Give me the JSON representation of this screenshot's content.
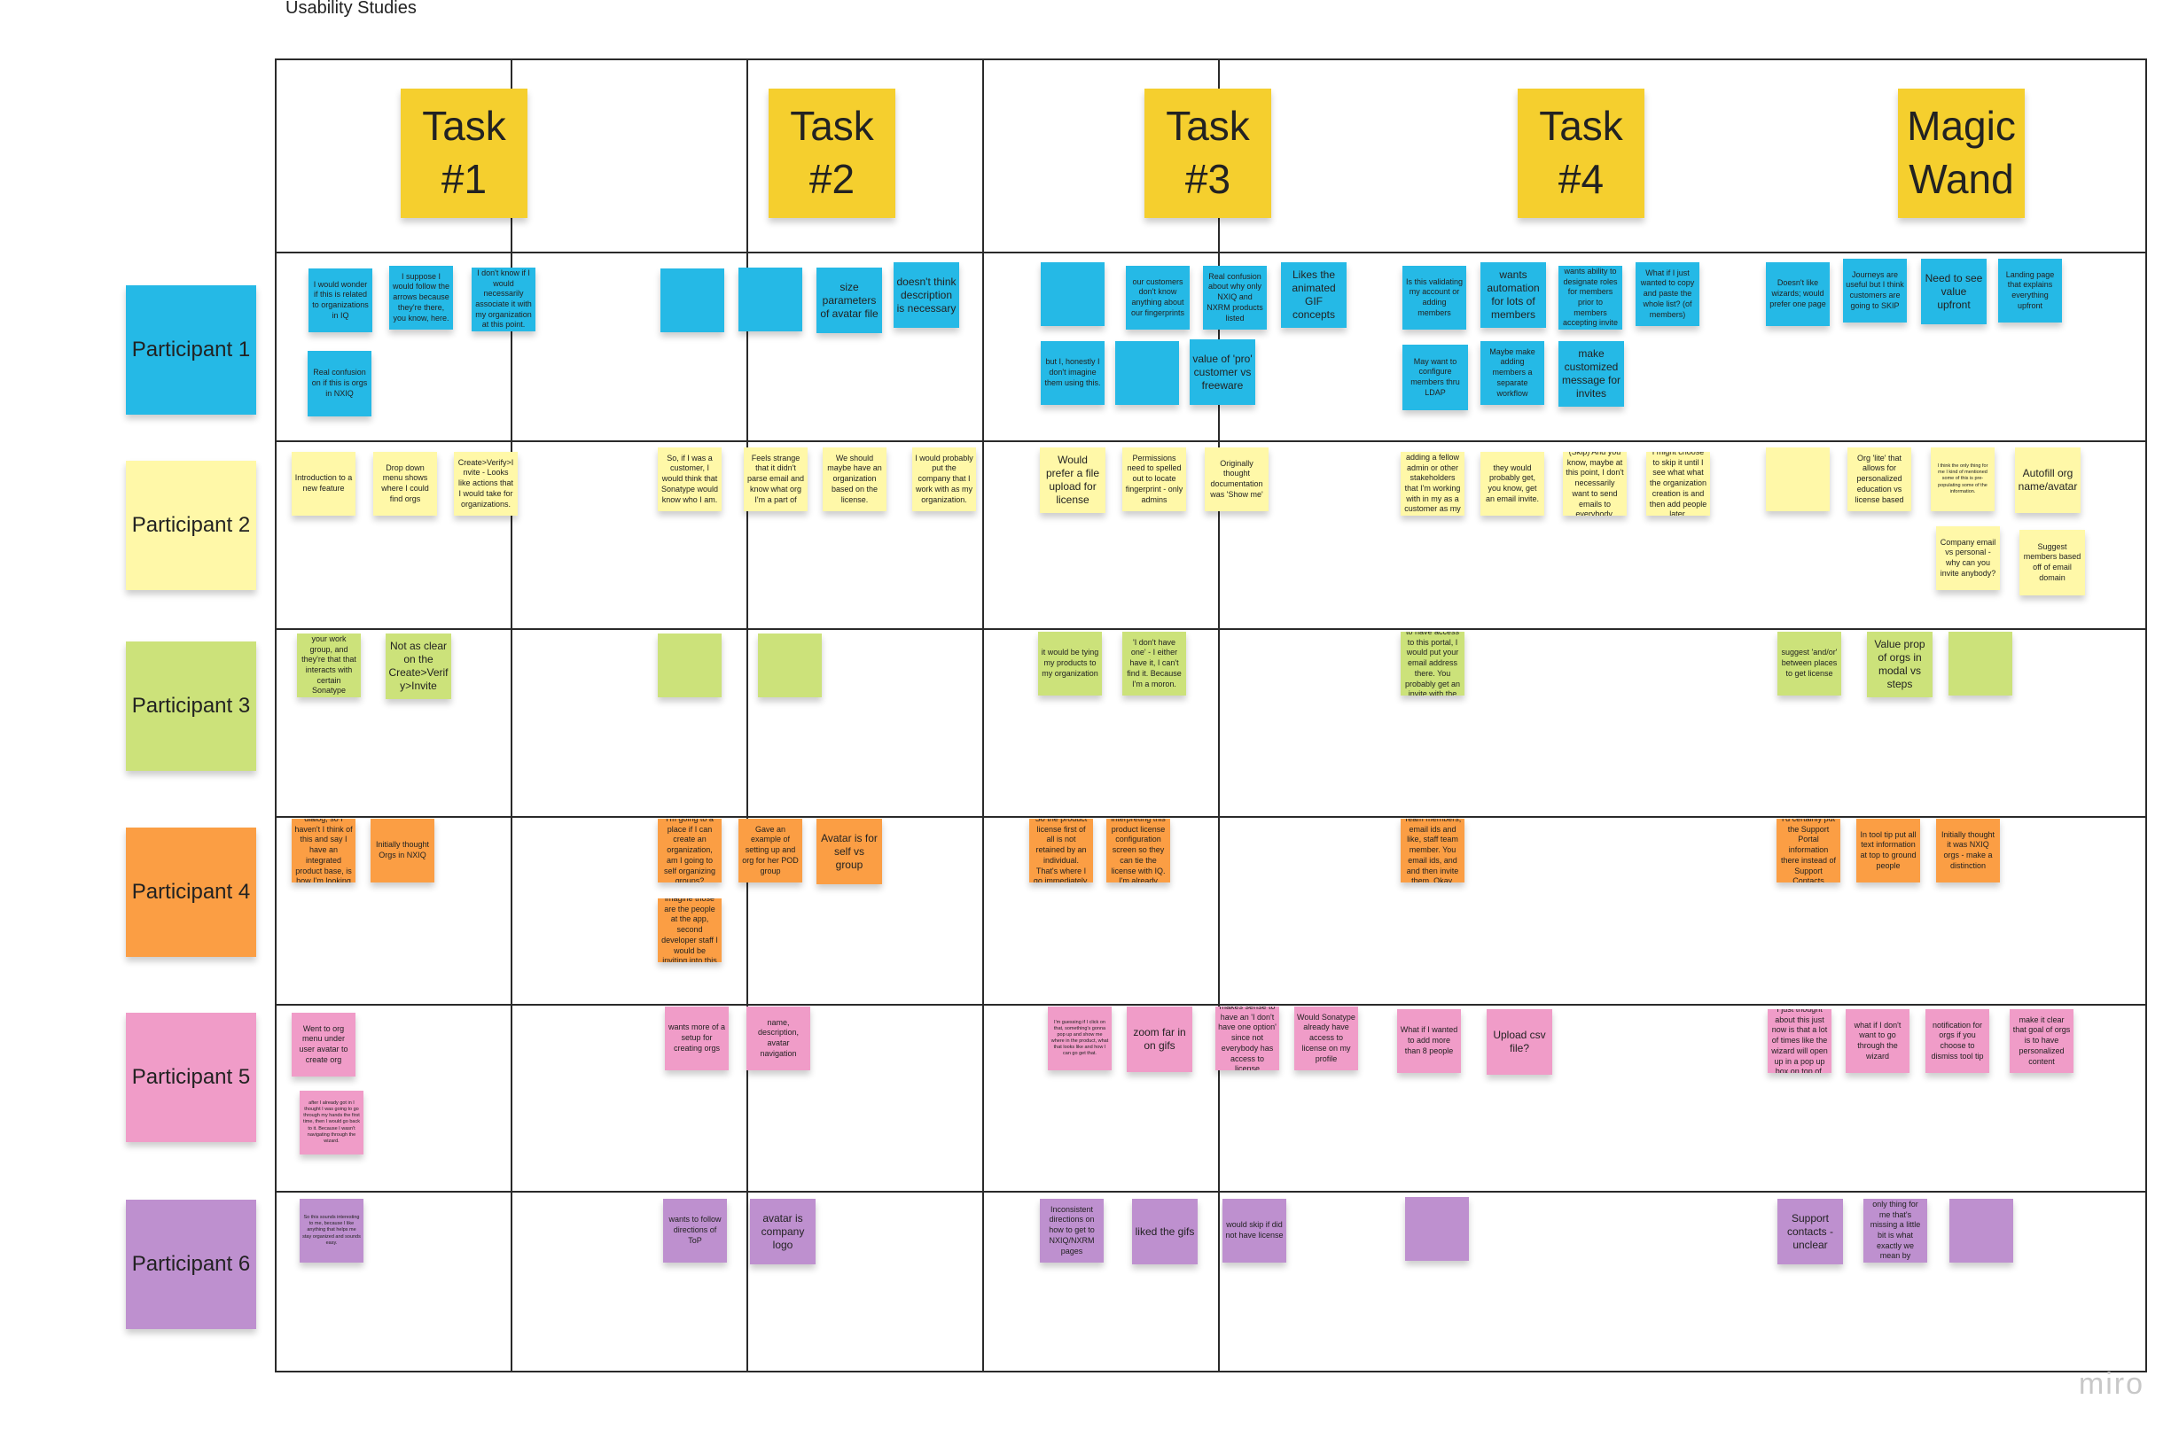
{
  "board": {
    "title": "Usability Studies",
    "watermark": "miro"
  },
  "colors": {
    "task": "#f5cf2e",
    "p1": "#25b9e6",
    "p2": "#fff8a8",
    "p3": "#cce27a",
    "p4": "#fb9e44",
    "p5": "#f09cc8",
    "p6": "#be90cf"
  },
  "columns": [
    {
      "label": "Task #1"
    },
    {
      "label": "Task #2"
    },
    {
      "label": "Task #3"
    },
    {
      "label": "Task #4"
    },
    {
      "label": "Magic Wand"
    }
  ],
  "rows": [
    {
      "label": "Participant 1",
      "color": "#25b9e6"
    },
    {
      "label": "Participant 2",
      "color": "#fff8a8"
    },
    {
      "label": "Participant 3",
      "color": "#cce27a"
    },
    {
      "label": "Participant 4",
      "color": "#fb9e44"
    },
    {
      "label": "Participant 5",
      "color": "#f09cc8"
    },
    {
      "label": "Participant 6",
      "color": "#be90cf"
    }
  ],
  "notes": {
    "p1": {
      "t1": [
        "I would wonder if this is related to organizations in IQ",
        "I suppose I would follow the arrows because they're there, you know, here.",
        "I don't know if I would necessarily associate it with my organization at this point.",
        "Real confusion on if this is orgs in NXIQ"
      ],
      "t2": [
        "",
        "",
        "size parameters of avatar file",
        "doesn't think description is necessary"
      ],
      "t3": [
        "",
        "our customers don't know anything about our fingerprints",
        "Real confusion about why only NXIQ and NXRM products listed",
        "Likes the animated GIF concepts",
        "but I, honestly I don't imagine them using this.",
        "",
        "value of 'pro' customer vs freeware"
      ],
      "t4": [
        "Is this validating my account or adding members",
        "wants automation for lots of members",
        "wants ability to designate roles for members prior to members accepting invite",
        "What if I just wanted to copy and paste the whole list? (of members)",
        "May want to configure members thru LDAP",
        "Maybe make adding members a separate workflow",
        "make customized message for invites"
      ],
      "mw": [
        "Doesn't like wizards; would prefer one page",
        "Journeys are useful but I think customers are going to SKIP",
        "Need to see value upfront",
        "Landing page that explains everything upfront"
      ]
    },
    "p2": {
      "t1": [
        "Introduction to a new feature",
        "Drop down menu shows where I could find orgs",
        "Create>Verify>Invite - Looks like actions that I would take for organizations."
      ],
      "t2": [
        "So, if I was a customer, I would think that Sonatype would know who I am.",
        "Feels strange that it didn't parse email and know what org I'm a part of",
        "We should maybe have an organization based on the license.",
        "I would probably put the company that I work with as my organization."
      ],
      "t3": [
        "Would prefer a file upload for license",
        "Permissions need to spelled out to locate fingerprint - only admins",
        "Originally thought documentation was 'Show me'"
      ],
      "t4": [
        "I would be adding a fellow admin or other stakeholders that I'm working with in my as a customer as my organization.",
        "they would probably get, you know, get an email invite.",
        "(Skip) And you know, maybe at this point, I don't necessarily want to send emails to everybody.",
        "I might choose to skip it until I see what what the organization creation is and then add people later."
      ],
      "mw": [
        "",
        "Org 'lite' that allows for personalized education vs license based",
        "I think the only thing for me I kind of mentioned some of this is pre-populating some of the information.",
        "Autofill org name/avatar",
        "Company email vs personal - why can you invite anybody?",
        "Suggest members based off of email domain"
      ]
    },
    "p3": {
      "t1": [
        "Everybody in your work group, and they're that that interacts with certain Sonatype products",
        "Not as clear on the Create>Verify>Invite"
      ],
      "t2": [
        "",
        ""
      ],
      "t3": [
        "it would be tying my products to my organization",
        "'I don't have one' - I either have it, I can't find it. Because I'm a moron."
      ],
      "t4": [
        "If I wanted you to have access to this portal, I would put your email address there. You probably get an invite with the link to join."
      ],
      "mw": [
        "suggest 'and/or' between places to get license",
        "Value prop of orgs in modal vs steps",
        ""
      ]
    },
    "p4": {
      "t1": [
        "I'm seeing this dialog, so I haven't I think of this and say I have an integrated product base, is how I'm looking at this.",
        "Initially thought Orgs in NXIQ"
      ],
      "t2": [
        "I'm going to a place if I can create an organization, am I going to self organizing groups?",
        "Gave an example of setting up and org for her POD group",
        "Avatar is for self vs group",
        "So I would imagine those are the people at the app, second developer staff I would be inviting into this organization"
      ],
      "t3": [
        "So the product license first of all is not retained by an individual. That's where I go immediately.",
        "That's how I'm interpreting this product license configuration screen so they can tie the license with IQ. I'm already excited."
      ],
      "t4": [
        "Team members, email ids and like, staff team member. You email ids, and and then invite them. Okay."
      ],
      "mw": [
        "I'd certainly put the Support Portal information there instead of Support Contacts",
        "In tool tip put all text information at top to ground people",
        "Initially thought it was NXIQ orgs - make a distinction"
      ]
    },
    "p5": {
      "t1": [
        "Went to org menu under user avatar to create org",
        "after I already got in I thought I was going to go through my hands the first time, then I would go back to it. Because I wasn't navigating through the wizard."
      ],
      "t2": [
        "wants more of a setup for creating orgs",
        "name, description, avatar navigation"
      ],
      "t3": [
        "I'm guessing if I click on that, something's gonna pop up and show me where in the product, what that looks like and how I can go get that.",
        "zoom far in on gifs",
        "makes sense to have an 'I don't have one option' since not everybody has access to license",
        "Would Sonatype already have access to license on my profile"
      ],
      "t4": [
        "What if I wanted to add more than 8 people",
        "Upload csv file?"
      ],
      "mw": [
        "I just thought about this just now is that a lot of times like the wizard will open up in a pop up box on top of.",
        "what if I don't want to go through the wizard",
        "notification for orgs if you choose to dismiss tool tip",
        "make it clear that goal of orgs is to have personalized content"
      ]
    },
    "p6": {
      "t1": [
        "So this sounds interesting to me, because I like anything that helps me stay organized and sounds easy."
      ],
      "t2": [
        "wants to follow directions of ToP",
        "avatar is company logo"
      ],
      "t3": [
        "Inconsistent directions on how to get to NXIQ/NXRM pages",
        "liked the gifs",
        "would skip if did not have license"
      ],
      "t4": [
        ""
      ],
      "mw": [
        "Support contacts - unclear",
        "I feel like the only thing for me that's missing a little bit is what exactly we mean by organization.",
        ""
      ]
    }
  }
}
